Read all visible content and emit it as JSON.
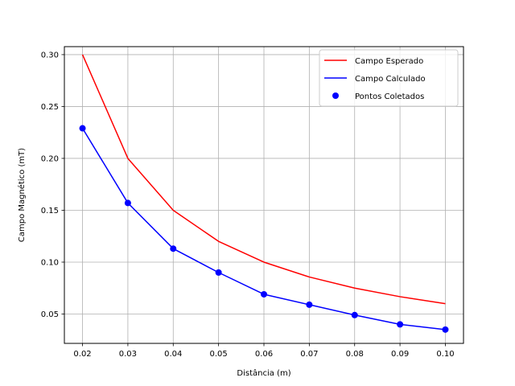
{
  "chart_data": {
    "type": "line",
    "title": "",
    "xlabel": "Distância (m)",
    "ylabel": "Campo Magnético (mT)",
    "xlim": [
      0.016,
      0.104
    ],
    "ylim": [
      0.0217,
      0.3077
    ],
    "x_ticks": [
      0.02,
      0.03,
      0.04,
      0.05,
      0.06,
      0.07,
      0.08,
      0.09,
      0.1
    ],
    "x_tick_labels": [
      "0.02",
      "0.03",
      "0.04",
      "0.05",
      "0.06",
      "0.07",
      "0.08",
      "0.09",
      "0.10"
    ],
    "y_ticks": [
      0.05,
      0.1,
      0.15,
      0.2,
      0.25,
      0.3
    ],
    "y_tick_labels": [
      "0.05",
      "0.10",
      "0.15",
      "0.20",
      "0.25",
      "0.30"
    ],
    "grid": true,
    "legend_position": "top-right",
    "x": [
      0.02,
      0.03,
      0.04,
      0.05,
      0.06,
      0.07,
      0.08,
      0.09,
      0.1
    ],
    "series": [
      {
        "name": "Campo Esperado",
        "kind": "line",
        "color": "#ff0000",
        "values": [
          0.3,
          0.2,
          0.15,
          0.12,
          0.1,
          0.0857,
          0.075,
          0.0667,
          0.06
        ]
      },
      {
        "name": "Campo Calculado",
        "kind": "line",
        "color": "#0000ff",
        "values": [
          0.229,
          0.157,
          0.113,
          0.09,
          0.069,
          0.059,
          0.049,
          0.04,
          0.035
        ]
      },
      {
        "name": "Pontos Coletados",
        "kind": "scatter",
        "color": "#0000ff",
        "values": [
          0.229,
          0.157,
          0.113,
          0.09,
          0.069,
          0.059,
          0.049,
          0.04,
          0.035
        ]
      }
    ]
  }
}
